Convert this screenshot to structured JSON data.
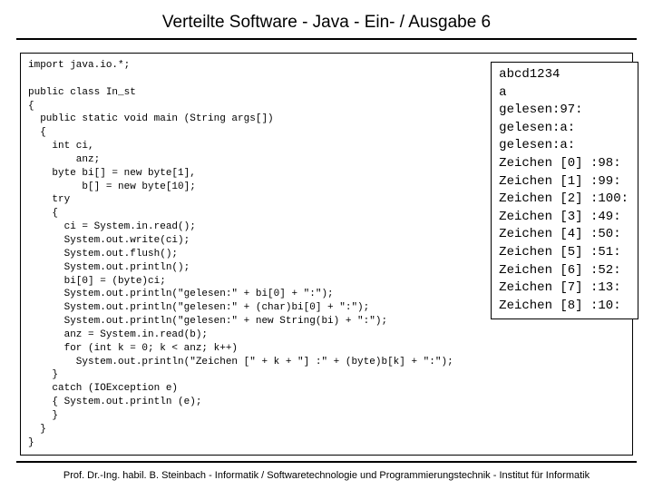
{
  "title": "Verteilte Software - Java - Ein- / Ausgabe 6",
  "code": "import java.io.*;\n\npublic class In_st\n{\n  public static void main (String args[])\n  {\n    int ci,\n        anz;\n    byte bi[] = new byte[1],\n         b[] = new byte[10];\n    try\n    {\n      ci = System.in.read();\n      System.out.write(ci);\n      System.out.flush();\n      System.out.println();\n      bi[0] = (byte)ci;\n      System.out.println(\"gelesen:\" + bi[0] + \":\");\n      System.out.println(\"gelesen:\" + (char)bi[0] + \":\");\n      System.out.println(\"gelesen:\" + new String(bi) + \":\");\n      anz = System.in.read(b);\n      for (int k = 0; k < anz; k++)\n        System.out.println(\"Zeichen [\" + k + \"] :\" + (byte)b[k] + \":\");\n    }\n    catch (IOException e)\n    { System.out.println (e);\n    }\n  }\n}",
  "output_lines": [
    "abcd1234",
    "a",
    "gelesen:97:",
    "gelesen:a:",
    "gelesen:a:",
    "Zeichen [0] :98:",
    "Zeichen [1] :99:",
    "Zeichen [2] :100:",
    "Zeichen [3] :49:",
    "Zeichen [4] :50:",
    "Zeichen [5] :51:",
    "Zeichen [6] :52:",
    "Zeichen [7] :13:",
    "Zeichen [8] :10:"
  ],
  "footer": "Prof. Dr.-Ing. habil. B. Steinbach - Informatik / Softwaretechnologie und Programmierungstechnik - Institut für Informatik",
  "colors": {
    "background": "#ffffff",
    "text": "#000000",
    "border": "#000000"
  }
}
